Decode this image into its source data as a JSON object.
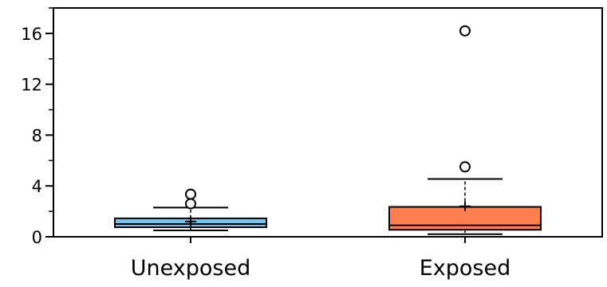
{
  "chart_data": {
    "type": "box",
    "categories": [
      "Unexposed",
      "Exposed"
    ],
    "ylim": [
      0,
      18
    ],
    "yticks": [
      0,
      4,
      8,
      12,
      16
    ],
    "yminor": [
      2,
      6,
      10,
      14,
      18
    ],
    "grid": false,
    "boxes": [
      {
        "label": "Unexposed",
        "color": "#7EC0E8",
        "whisker_low": 0.5,
        "q1": 0.75,
        "median": 1.0,
        "mean": 1.2,
        "q3": 1.45,
        "whisker_high": 2.3,
        "outliers": [
          2.6,
          3.35
        ]
      },
      {
        "label": "Exposed",
        "color": "#FF7F50",
        "whisker_low": 0.2,
        "q1": 0.55,
        "median": 0.9,
        "mean": 2.4,
        "q3": 2.35,
        "whisker_high": 4.55,
        "outliers": [
          5.5,
          16.2
        ]
      }
    ]
  }
}
